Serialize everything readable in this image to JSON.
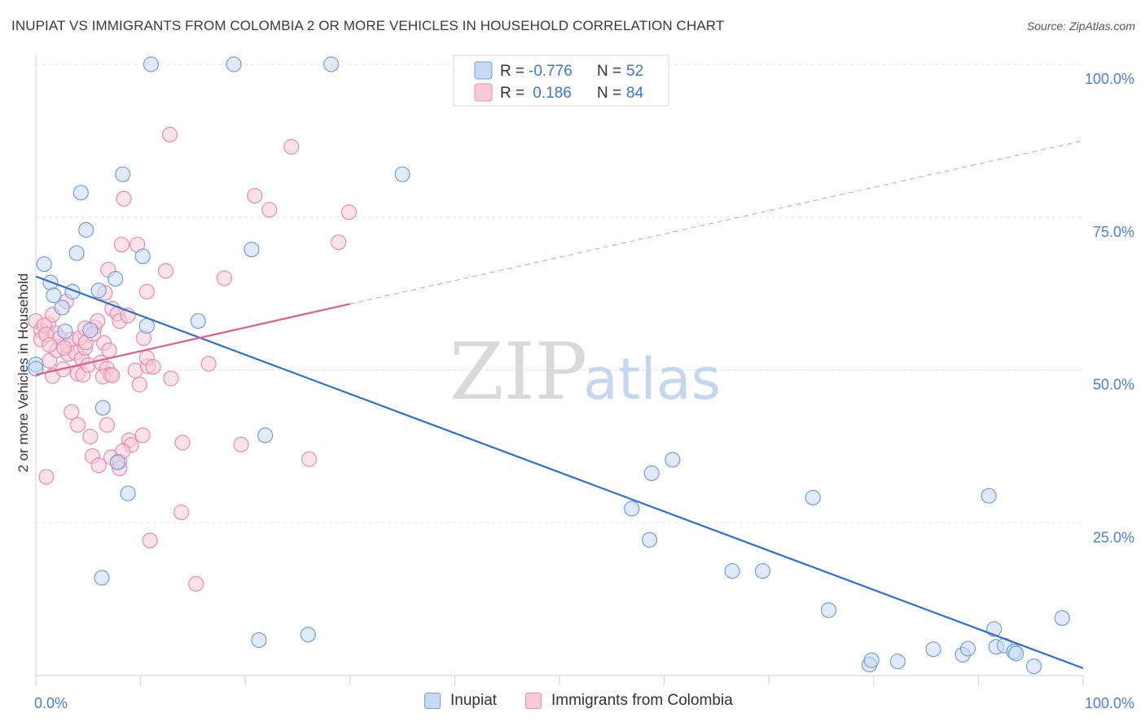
{
  "header": {
    "title": "INUPIAT VS IMMIGRANTS FROM COLOMBIA 2 OR MORE VEHICLES IN HOUSEHOLD CORRELATION CHART",
    "source": "Source: ZipAtlas.com"
  },
  "watermark": {
    "zip": "ZIP",
    "atlas": "atlas"
  },
  "colors": {
    "blue_fill": "#c6d9f5",
    "blue_stroke": "#6e9fe0",
    "blue_line": "#2f6fd0",
    "pink_fill": "#f9cbd9",
    "pink_stroke": "#ea8aac",
    "pink_line": "#e0608c",
    "grid": "#e3e3e3",
    "axis_text": "#4a7fd4"
  },
  "legend_box": {
    "rows": [
      {
        "r_label": "R =",
        "r_value": "-0.776",
        "n_label": "N =",
        "n_value": "52"
      },
      {
        "r_label": "R =",
        "r_value": " 0.186",
        "n_label": "N =",
        "n_value": "84"
      }
    ]
  },
  "bottom_legend": [
    {
      "label": "Inupiat"
    },
    {
      "label": "Immigrants from Colombia"
    }
  ],
  "chart_data": {
    "type": "scatter",
    "ylabel": "2 or more Vehicles in Household",
    "xlim": [
      0,
      100
    ],
    "ylim": [
      0,
      100
    ],
    "x_tick_labels": [
      "0.0%",
      "100.0%"
    ],
    "y_ticks": [
      {
        "value": 100,
        "label": "100.0%"
      },
      {
        "value": 75,
        "label": "75.0%"
      },
      {
        "value": 50,
        "label": "50.0%"
      },
      {
        "value": 25,
        "label": "25.0%"
      }
    ],
    "grid": true,
    "series": [
      {
        "name": "Inupiat",
        "color": "blue",
        "trend": {
          "x1": 0,
          "y1": 65.3,
          "x2": 100,
          "y2": 1.2,
          "dashed_to": null
        },
        "points": [
          [
            11.0,
            100
          ],
          [
            18.9,
            100
          ],
          [
            28.2,
            100
          ],
          [
            8.3,
            82
          ],
          [
            35.0,
            82
          ],
          [
            4.3,
            79
          ],
          [
            4.8,
            72.9
          ],
          [
            3.9,
            69.1
          ],
          [
            20.6,
            69.7
          ],
          [
            10.2,
            68.6
          ],
          [
            0.8,
            67.3
          ],
          [
            1.4,
            64.3
          ],
          [
            7.6,
            64.9
          ],
          [
            1.7,
            62.2
          ],
          [
            2.5,
            60.2
          ],
          [
            3.5,
            62.8
          ],
          [
            6.0,
            63
          ],
          [
            15.5,
            58
          ],
          [
            10.6,
            57.2
          ],
          [
            5.2,
            56.5
          ],
          [
            2.8,
            56.3
          ],
          [
            0,
            50.9
          ],
          [
            0,
            50.2
          ],
          [
            6.4,
            43.8
          ],
          [
            21.9,
            39.3
          ],
          [
            7.8,
            34.9
          ],
          [
            8.8,
            29.8
          ],
          [
            6.3,
            16
          ],
          [
            21.3,
            5.8
          ],
          [
            26.0,
            6.7
          ],
          [
            56.9,
            27.3
          ],
          [
            58.8,
            33.1
          ],
          [
            58.6,
            22.2
          ],
          [
            60.8,
            35.3
          ],
          [
            66.5,
            17.1
          ],
          [
            69.4,
            17.1
          ],
          [
            74.2,
            29.1
          ],
          [
            75.7,
            10.7
          ],
          [
            79.6,
            1.8
          ],
          [
            79.8,
            2.5
          ],
          [
            82.3,
            2.3
          ],
          [
            85.7,
            4.3
          ],
          [
            88.5,
            3.4
          ],
          [
            89.0,
            4.4
          ],
          [
            91.5,
            7.6
          ],
          [
            91.7,
            4.7
          ],
          [
            92.5,
            4.9
          ],
          [
            93.4,
            3.9
          ],
          [
            93.6,
            3.6
          ],
          [
            91.0,
            29.4
          ],
          [
            95.3,
            1.5
          ],
          [
            98.0,
            9.4
          ]
        ]
      },
      {
        "name": "Immigrants from Colombia",
        "color": "pink",
        "trend": {
          "x1": 0,
          "y1": 49.2,
          "x2": 30,
          "y2": 60.8,
          "dash_x2": 100,
          "dash_y2": 87.5
        },
        "points": [
          [
            0,
            58
          ],
          [
            0.5,
            56.5
          ],
          [
            0.5,
            55
          ],
          [
            1.2,
            57.5
          ],
          [
            1.6,
            59
          ],
          [
            1.9,
            56
          ],
          [
            1.3,
            51.5
          ],
          [
            1.6,
            49
          ],
          [
            2.3,
            55.2
          ],
          [
            2.0,
            53.2
          ],
          [
            2.6,
            50.1
          ],
          [
            3.1,
            52.6
          ],
          [
            3.0,
            54
          ],
          [
            3.4,
            55
          ],
          [
            3.8,
            52.8
          ],
          [
            4.0,
            49.4
          ],
          [
            4.4,
            51.8
          ],
          [
            4.7,
            53.6
          ],
          [
            4.2,
            55.2
          ],
          [
            4.8,
            54.5
          ],
          [
            4.5,
            49.2
          ],
          [
            5.0,
            50.8
          ],
          [
            5.6,
            57
          ],
          [
            5.9,
            58
          ],
          [
            6.2,
            51.2
          ],
          [
            6.8,
            50.2
          ],
          [
            6.5,
            54.4
          ],
          [
            7.0,
            53.2
          ],
          [
            7.3,
            60
          ],
          [
            7.8,
            59.2
          ],
          [
            8.0,
            58
          ],
          [
            8.8,
            58.9
          ],
          [
            7.1,
            49.2
          ],
          [
            9.5,
            49.9
          ],
          [
            10.7,
            50.6
          ],
          [
            9.9,
            47.6
          ],
          [
            10.3,
            55.2
          ],
          [
            10.6,
            52
          ],
          [
            11.2,
            50.5
          ],
          [
            12.9,
            48.6
          ],
          [
            6.6,
            62.6
          ],
          [
            6.9,
            66.4
          ],
          [
            10.6,
            62.8
          ],
          [
            12.4,
            66.2
          ],
          [
            8.2,
            70.5
          ],
          [
            9.7,
            70.5
          ],
          [
            8.4,
            78
          ],
          [
            12.8,
            88.5
          ],
          [
            20.9,
            78.5
          ],
          [
            22.3,
            76.2
          ],
          [
            24.4,
            86.5
          ],
          [
            28.9,
            70.9
          ],
          [
            29.9,
            75.8
          ],
          [
            18.0,
            65
          ],
          [
            16.5,
            51
          ],
          [
            3.4,
            43.1
          ],
          [
            4.0,
            41
          ],
          [
            5.2,
            39.1
          ],
          [
            6.8,
            41
          ],
          [
            10.2,
            39.3
          ],
          [
            8.9,
            38.5
          ],
          [
            9.1,
            37.7
          ],
          [
            14.0,
            38.1
          ],
          [
            19.6,
            37.8
          ],
          [
            26.1,
            35.4
          ],
          [
            5.4,
            35.9
          ],
          [
            6.0,
            34.4
          ],
          [
            7.2,
            35.7
          ],
          [
            8.0,
            35
          ],
          [
            8.3,
            36.7
          ],
          [
            8.0,
            33.9
          ],
          [
            13.9,
            26.7
          ],
          [
            10.9,
            22.1
          ],
          [
            15.3,
            15
          ],
          [
            1.0,
            32.5
          ],
          [
            0.8,
            57.3
          ],
          [
            2.9,
            61.2
          ],
          [
            2.7,
            53.6
          ],
          [
            1.0,
            55.8
          ],
          [
            1.3,
            54.1
          ],
          [
            4.7,
            56.8
          ],
          [
            5.5,
            55.9
          ],
          [
            6.4,
            48.9
          ],
          [
            7.3,
            49.1
          ]
        ]
      }
    ]
  }
}
